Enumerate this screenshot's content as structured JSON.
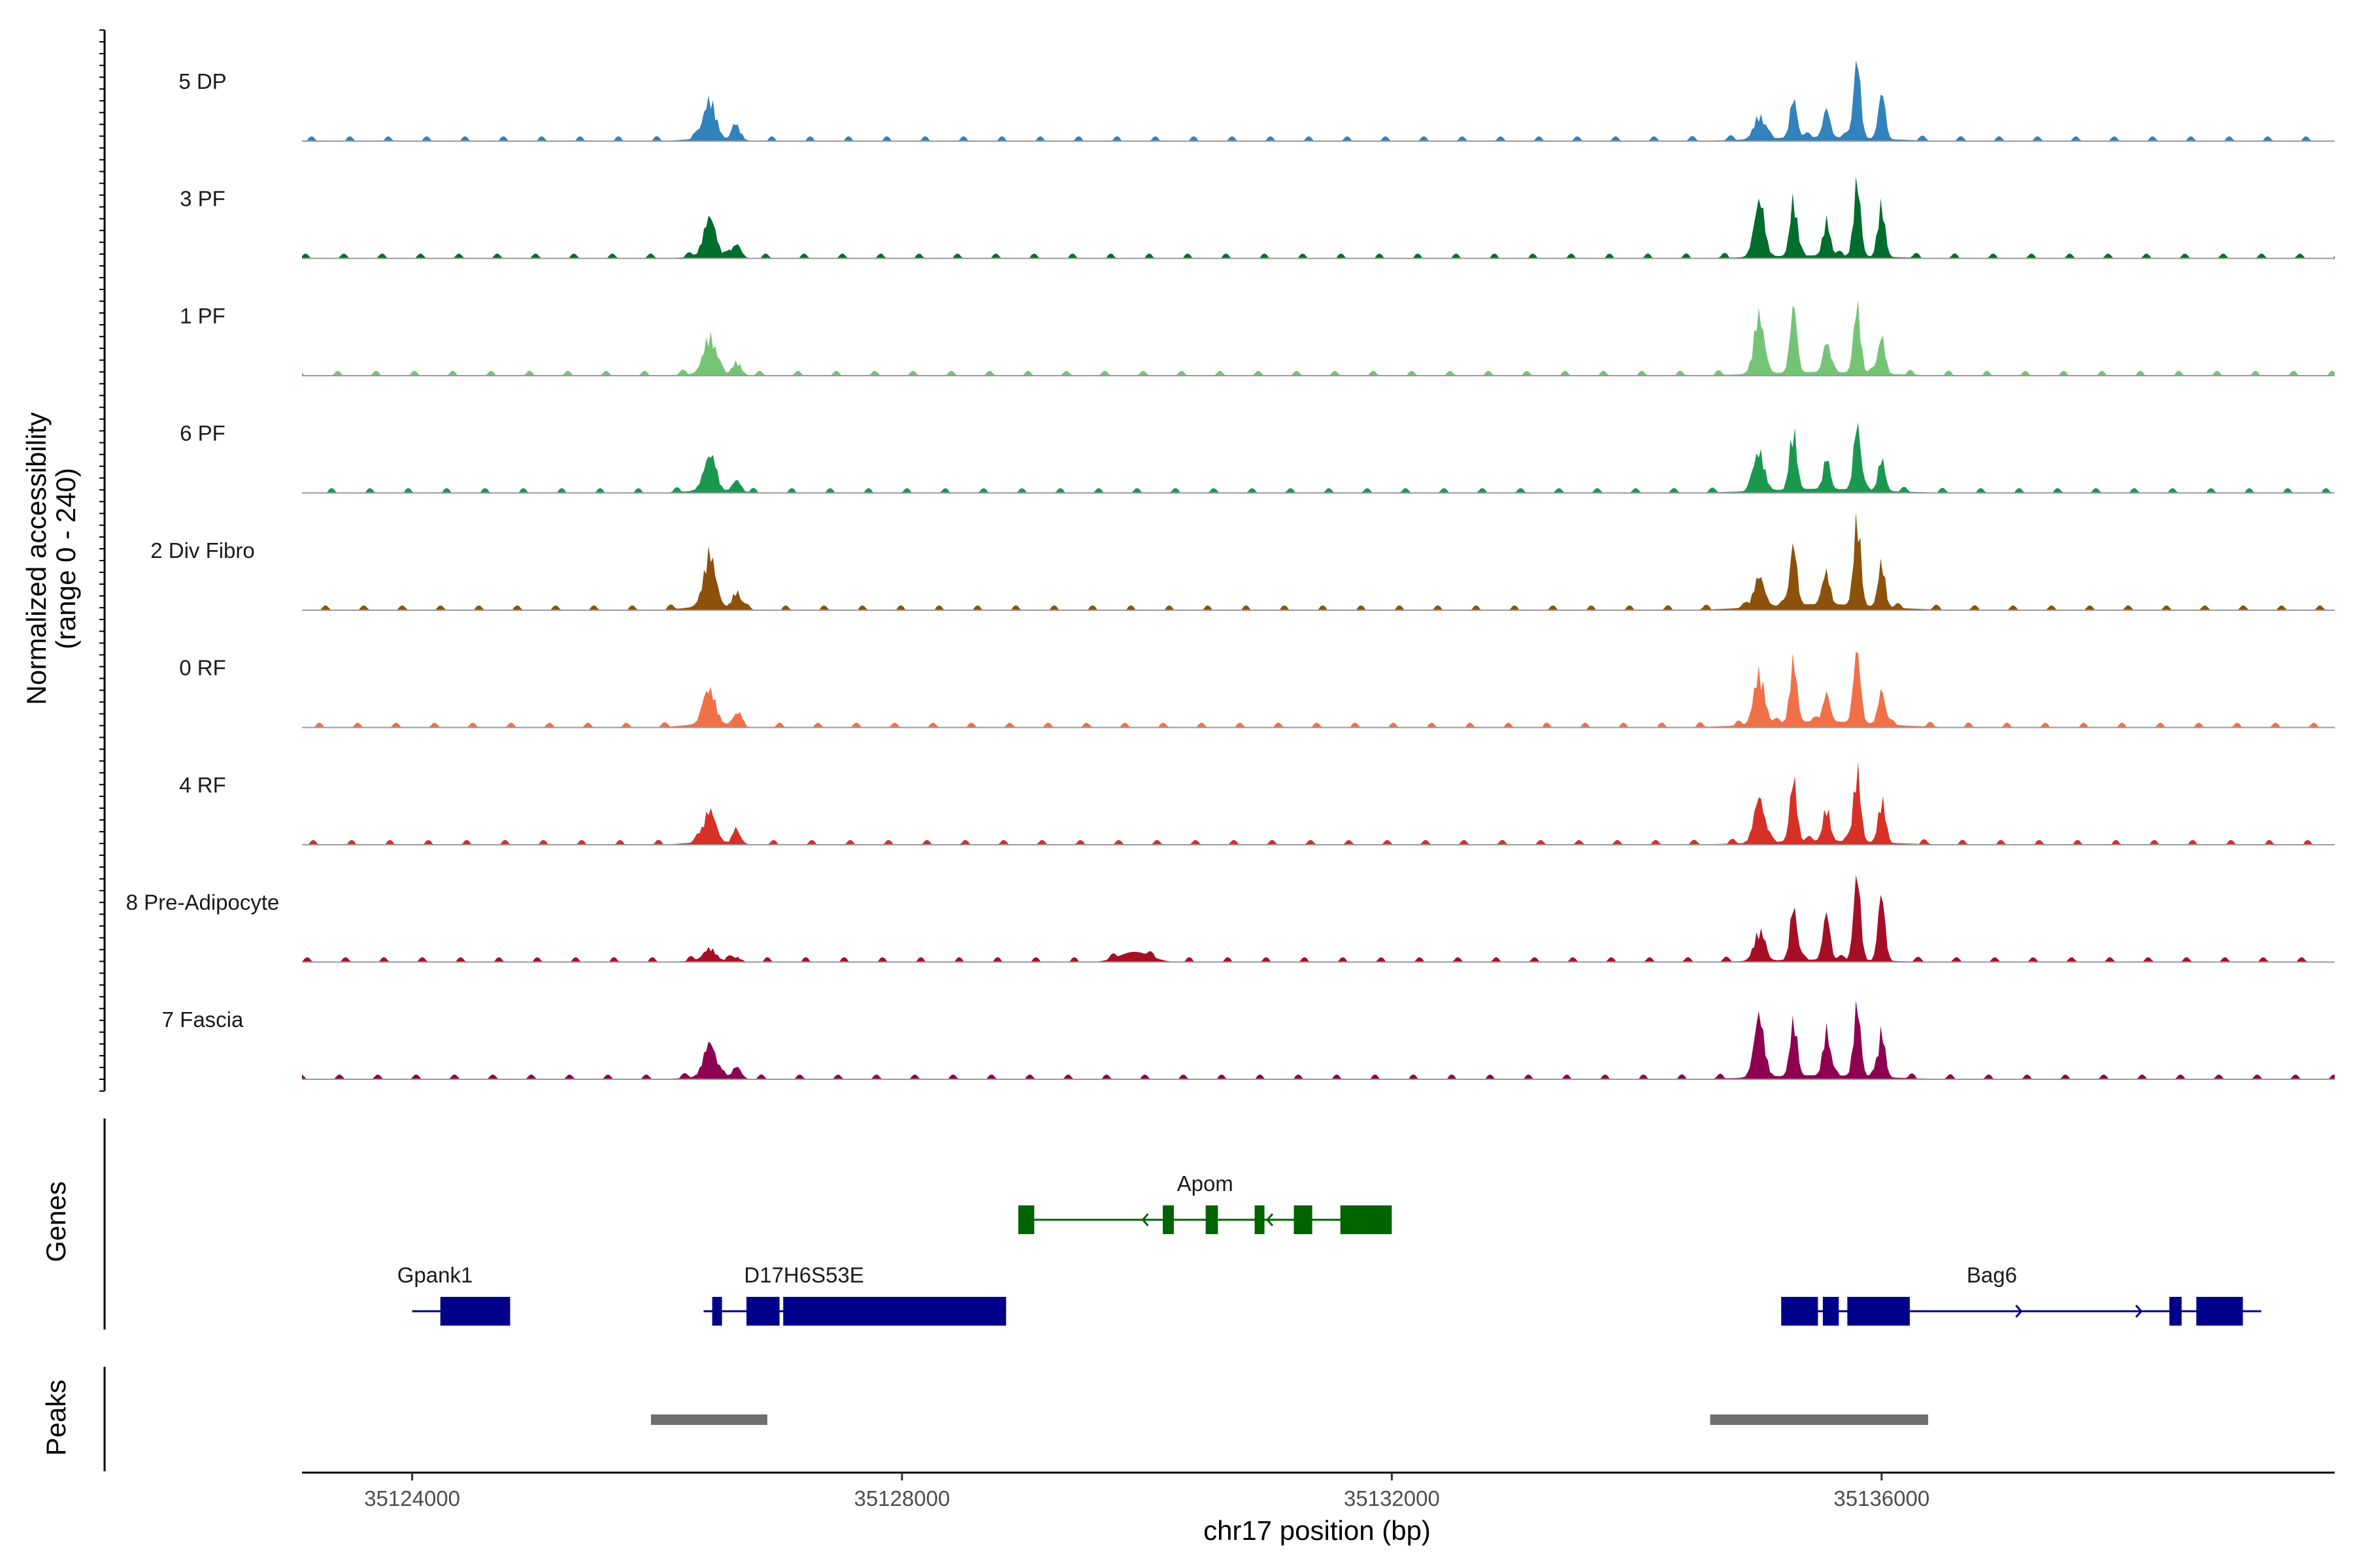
{
  "chart_data": {
    "type": "area",
    "chromosome": "chr17",
    "xlabel": "chr17 position (bp)",
    "ylabel_line1": "Normalized accessibility",
    "ylabel_line2": "(range 0 - 240)",
    "y_range": [
      0,
      240
    ],
    "xlim": [
      35123100,
      35139700
    ],
    "x_ticks": [
      35124000,
      35128000,
      35132000,
      35136000
    ],
    "x_tick_labels": [
      "35124000",
      "35128000",
      "35132000",
      "35136000"
    ],
    "genes_label": "Genes",
    "peaks_label": "Peaks",
    "peak_centers": [
      35126430,
      35135000,
      35135280,
      35135550,
      35135800,
      35136000
    ],
    "tracks": [
      {
        "name": "5 DP",
        "color": "#3182bd",
        "values": [
          110,
          20,
          65,
          110,
          80,
          220,
          120,
          75
        ]
      },
      {
        "name": "3 PF",
        "color": "#006d2c",
        "values": [
          110,
          15,
          150,
          160,
          100,
          210,
          140,
          60
        ]
      },
      {
        "name": "1 PF",
        "color": "#74c476",
        "values": [
          105,
          18,
          155,
          175,
          85,
          190,
          105,
          60
        ]
      },
      {
        "name": "6 PF",
        "color": "#1a9850",
        "values": [
          95,
          20,
          110,
          165,
          75,
          185,
          90,
          30
        ]
      },
      {
        "name": "2 Div Fibro",
        "color": "#8c510a",
        "values": [
          140,
          30,
          85,
          170,
          90,
          240,
          125,
          45
        ]
      },
      {
        "name": "0 RF",
        "color": "#f07048",
        "values": [
          95,
          30,
          145,
          175,
          80,
          195,
          95,
          55
        ]
      },
      {
        "name": "4 RF",
        "color": "#d73027",
        "values": [
          90,
          20,
          125,
          175,
          95,
          205,
          115,
          60
        ]
      },
      {
        "name": "8 Pre-Adipocyte",
        "color": "#a50f25",
        "values": [
          35,
          12,
          80,
          150,
          130,
          240,
          175,
          110
        ]
      },
      {
        "name": "7 Fascia",
        "color": "#8e0152",
        "values": [
          95,
          20,
          160,
          150,
          130,
          200,
          130,
          70
        ]
      }
    ],
    "genes": [
      {
        "name": "Gpank1",
        "color": "#00008b",
        "start": 35124000,
        "end": 35124800,
        "strand": "-",
        "exons": [
          [
            35124230,
            35124800
          ]
        ]
      },
      {
        "name": "D17H6S53E",
        "color": "#00008b",
        "start": 35126380,
        "end": 35128850,
        "strand": "+",
        "exons": [
          [
            35126450,
            35126530
          ],
          [
            35126730,
            35127000
          ],
          [
            35127030,
            35128850
          ]
        ]
      },
      {
        "name": "Apom",
        "color": "#006400",
        "start": 35128950,
        "end": 35132000,
        "strand": "-",
        "exons": [
          [
            35128950,
            35129080
          ],
          [
            35130130,
            35130220
          ],
          [
            35130480,
            35130580
          ],
          [
            35130880,
            35130960
          ],
          [
            35131200,
            35131350
          ],
          [
            35131580,
            35132000
          ]
        ]
      },
      {
        "name": "Bag6",
        "color": "#00008b",
        "start": 35135180,
        "end": 35139100,
        "strand": "+",
        "exons": [
          [
            35135180,
            35135480
          ],
          [
            35135520,
            35135650
          ],
          [
            35135720,
            35136230
          ],
          [
            35138350,
            35138450
          ],
          [
            35138570,
            35138950
          ]
        ]
      }
    ],
    "peaks": [
      {
        "start": 35125950,
        "end": 35126900
      },
      {
        "start": 35134600,
        "end": 35136380
      }
    ]
  }
}
